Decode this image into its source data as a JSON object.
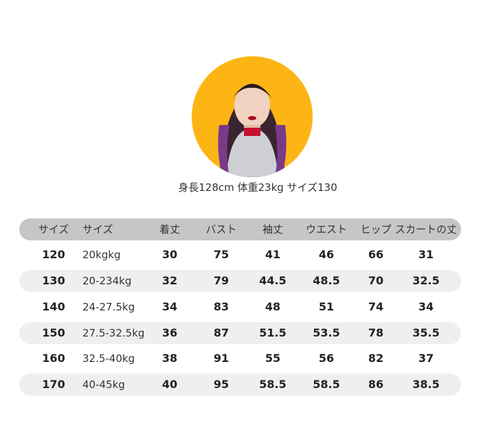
{
  "caption": "身長128cm 体重23kg サイズ130",
  "photo_bg": "#fcb514",
  "table": {
    "headers": [
      "サイズ",
      "サイズ",
      "着丈",
      "バスト",
      "袖丈",
      "ウエスト",
      "ヒップ",
      "スカートの丈"
    ],
    "rows": [
      [
        "120",
        "20kgkg",
        "30",
        "75",
        "41",
        "46",
        "66",
        "31"
      ],
      [
        "130",
        "20-234kg",
        "32",
        "79",
        "44.5",
        "48.5",
        "70",
        "32.5"
      ],
      [
        "140",
        "24-27.5kg",
        "34",
        "83",
        "48",
        "51",
        "74",
        "34"
      ],
      [
        "150",
        "27.5-32.5kg",
        "36",
        "87",
        "51.5",
        "53.5",
        "78",
        "35.5"
      ],
      [
        "160",
        "32.5-40kg",
        "38",
        "91",
        "55",
        "56",
        "82",
        "37"
      ],
      [
        "170",
        "40-45kg",
        "40",
        "95",
        "58.5",
        "58.5",
        "86",
        "38.5"
      ]
    ]
  }
}
